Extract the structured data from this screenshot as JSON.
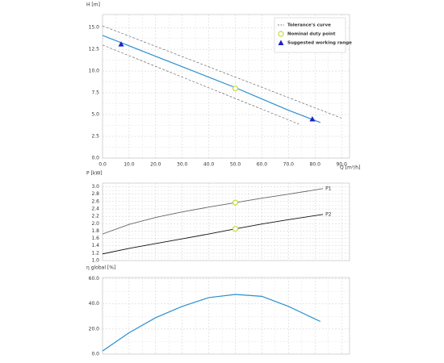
{
  "chart_data": [
    {
      "type": "line",
      "ylabel": "H [m]",
      "xlabel": "Q [m³/h]",
      "xlim": [
        0,
        93
      ],
      "ylim": [
        0,
        16.5
      ],
      "xticks": [
        {
          "value": 0,
          "label": "0.0"
        },
        {
          "value": 10,
          "label": "10.0"
        },
        {
          "value": 20,
          "label": "20.0"
        },
        {
          "value": 30,
          "label": "30.0"
        },
        {
          "value": 40,
          "label": "40.0"
        },
        {
          "value": 50,
          "label": "50.0"
        },
        {
          "value": 60,
          "label": "60.0"
        },
        {
          "value": 70,
          "label": "70.0"
        },
        {
          "value": 80,
          "label": "80.0"
        },
        {
          "value": 90,
          "label": "90.0"
        }
      ],
      "yticks": [
        {
          "value": 0,
          "label": "0.0"
        },
        {
          "value": 2.5,
          "label": "2.5"
        },
        {
          "value": 5,
          "label": "5.0"
        },
        {
          "value": 7.5,
          "label": "7.5"
        },
        {
          "value": 10,
          "label": "10.0"
        },
        {
          "value": 12.5,
          "label": "12.5"
        },
        {
          "value": 15,
          "label": "15.0"
        }
      ],
      "grid": true,
      "series": [
        {
          "color": "#2a8fd0",
          "x": [
            0,
            10,
            20,
            30,
            40,
            50,
            60,
            70,
            82
          ],
          "values": [
            14.1,
            12.9,
            11.7,
            10.5,
            9.3,
            8.1,
            6.8,
            5.5,
            4.1
          ]
        },
        {
          "name": "Tolerance's curve",
          "color": "#555555",
          "dashed": true,
          "x": [
            0,
            90
          ],
          "values": [
            15.2,
            4.6
          ]
        },
        {
          "color": "#555555",
          "dashed": true,
          "x": [
            0,
            74
          ],
          "values": [
            13.0,
            3.9
          ]
        }
      ],
      "points": [
        {
          "name": "Nominal duty point",
          "shape": "circle",
          "color": "#c6d93a",
          "x": [
            50
          ],
          "values": [
            8.0
          ]
        },
        {
          "name": "Suggested working range",
          "shape": "triangle",
          "color": "#1c22c8",
          "x": [
            7,
            79
          ],
          "values": [
            13.1,
            4.5
          ]
        }
      ],
      "legend": "upper right"
    },
    {
      "type": "line",
      "ylabel": "P [kW]",
      "xlim": [
        0,
        93
      ],
      "ylim": [
        1.0,
        3.1
      ],
      "xgrid": [
        0,
        10,
        20,
        30,
        40,
        50,
        60,
        70,
        80,
        90
      ],
      "yticks": [
        {
          "value": 1,
          "label": "1.0"
        },
        {
          "value": 1.2,
          "label": "1.2"
        },
        {
          "value": 1.4,
          "label": "1.4"
        },
        {
          "value": 1.6,
          "label": "1.6"
        },
        {
          "value": 1.8,
          "label": "1.8"
        },
        {
          "value": 2,
          "label": "2.0"
        },
        {
          "value": 2.2,
          "label": "2.2"
        },
        {
          "value": 2.4,
          "label": "2.4"
        },
        {
          "value": 2.6,
          "label": "2.6"
        },
        {
          "value": 2.8,
          "label": "2.8"
        },
        {
          "value": 3,
          "label": "3.0"
        }
      ],
      "grid": true,
      "series": [
        {
          "name": "P1",
          "color": "#666666",
          "x": [
            0,
            10,
            20,
            30,
            40,
            50,
            60,
            70,
            83
          ],
          "values": [
            1.72,
            1.98,
            2.17,
            2.32,
            2.45,
            2.57,
            2.69,
            2.8,
            2.95
          ]
        },
        {
          "name": "P2",
          "color": "#111111",
          "x": [
            0,
            10,
            20,
            30,
            40,
            50,
            60,
            70,
            83
          ],
          "values": [
            1.18,
            1.33,
            1.46,
            1.59,
            1.72,
            1.86,
            1.99,
            2.11,
            2.25
          ]
        }
      ],
      "points": [
        {
          "shape": "circle",
          "color": "#c6d93a",
          "x": [
            50,
            50
          ],
          "values": [
            2.57,
            1.86
          ]
        }
      ]
    },
    {
      "type": "line",
      "ylabel": "η global [%]",
      "xlim": [
        0,
        93
      ],
      "ylim": [
        0,
        61
      ],
      "xgrid": [
        0,
        10,
        20,
        30,
        40,
        50,
        60,
        70,
        80,
        90
      ],
      "yticks": [
        {
          "value": 0,
          "label": "0.0"
        },
        {
          "value": 20,
          "label": "20.0"
        },
        {
          "value": 40,
          "label": "40.0"
        },
        {
          "value": 60,
          "label": "60.0"
        }
      ],
      "grid": true,
      "series": [
        {
          "color": "#2a8fd0",
          "x": [
            0,
            10,
            20,
            30,
            40,
            50,
            60,
            70,
            82
          ],
          "values": [
            2.5,
            17,
            29,
            38,
            45,
            47.5,
            46,
            38,
            26
          ]
        }
      ]
    }
  ]
}
